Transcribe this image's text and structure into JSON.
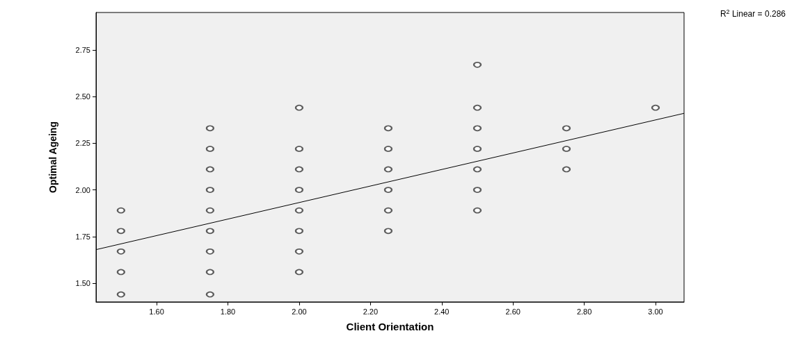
{
  "chart_data": {
    "type": "scatter",
    "xlabel": "Client Orientation",
    "ylabel": "Optimal Ageing",
    "annotations": [
      "R$^{2}$ Linear = 0.286"
    ],
    "xlim": [
      1.43,
      3.08
    ],
    "ylim": [
      1.4,
      2.95
    ],
    "xticks": [
      {
        "value": 1.6,
        "label": "1.60"
      },
      {
        "value": 1.8,
        "label": "1.80"
      },
      {
        "value": 2.0,
        "label": "2.00"
      },
      {
        "value": 2.2,
        "label": "2.20"
      },
      {
        "value": 2.4,
        "label": "2.40"
      },
      {
        "value": 2.6,
        "label": "2.60"
      },
      {
        "value": 2.8,
        "label": "2.80"
      },
      {
        "value": 3.0,
        "label": "3.00"
      }
    ],
    "yticks": [
      {
        "value": 1.5,
        "label": "1.50"
      },
      {
        "value": 1.75,
        "label": "1.75"
      },
      {
        "value": 2.0,
        "label": "2.00"
      },
      {
        "value": 2.25,
        "label": "2.25"
      },
      {
        "value": 2.5,
        "label": "2.50"
      },
      {
        "value": 2.75,
        "label": "2.75"
      }
    ],
    "grid": false,
    "marker": "circle",
    "series": [
      {
        "color": "#333333",
        "x": [
          1.5,
          1.5,
          1.5,
          1.5,
          1.5,
          1.75,
          1.75,
          1.75,
          1.75,
          1.75,
          1.75,
          1.75,
          1.75,
          1.75,
          2.0,
          2.0,
          2.0,
          2.0,
          2.0,
          2.0,
          2.0,
          2.0,
          2.25,
          2.25,
          2.25,
          2.25,
          2.25,
          2.25,
          2.5,
          2.5,
          2.5,
          2.5,
          2.5,
          2.5,
          2.5,
          2.75,
          2.75,
          2.75,
          3.0
        ],
        "values": [
          1.44,
          1.56,
          1.67,
          1.78,
          1.89,
          1.44,
          1.56,
          1.67,
          1.78,
          1.89,
          2.0,
          2.11,
          2.22,
          2.33,
          1.56,
          1.67,
          1.78,
          1.89,
          2.0,
          2.11,
          2.22,
          2.44,
          1.78,
          1.89,
          2.0,
          2.11,
          2.22,
          2.33,
          1.89,
          2.0,
          2.11,
          2.22,
          2.33,
          2.44,
          2.67,
          2.11,
          2.22,
          2.33,
          2.44
        ]
      },
      {
        "type": "line",
        "color": "#000000",
        "marker": "none",
        "line_style": "solid",
        "x": [
          1.43,
          3.08
        ],
        "values": [
          1.68,
          2.41
        ]
      }
    ]
  }
}
